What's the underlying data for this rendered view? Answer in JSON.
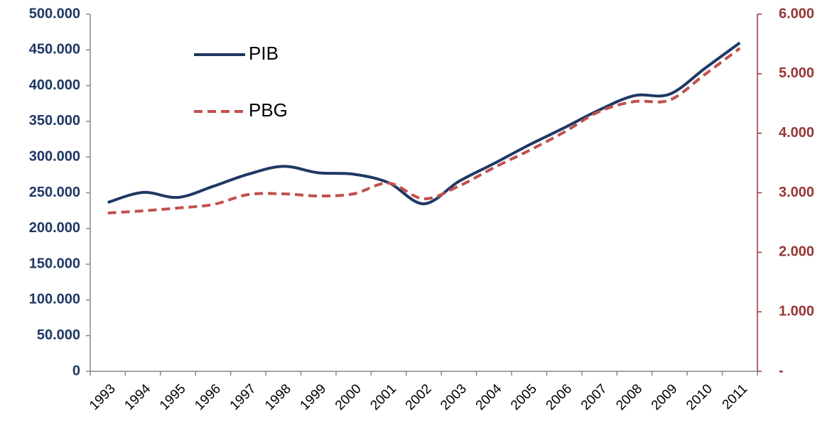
{
  "chart_data": {
    "type": "line",
    "categories": [
      "1993",
      "1994",
      "1995",
      "1996",
      "1997",
      "1998",
      "1999",
      "2000",
      "2001",
      "2002",
      "2003",
      "2004",
      "2005",
      "2006",
      "2007",
      "2008",
      "2009",
      "2010",
      "2011"
    ],
    "series": [
      {
        "name": "PIB",
        "color": "#1f3864",
        "values": [
          236500,
          250500,
          243500,
          259000,
          276000,
          287000,
          278000,
          276000,
          264000,
          234500,
          266000,
          291000,
          317000,
          341000,
          366000,
          386000,
          388000,
          424000,
          460000
        ]
      },
      {
        "name": "PBG",
        "color": "#c0504d",
        "axis": "y2",
        "dashed": true,
        "values": [
          2660,
          2696,
          2744,
          2803,
          2970,
          2982,
          2946,
          2982,
          3161,
          2899,
          3113,
          3423,
          3710,
          4020,
          4366,
          4533,
          4557,
          4986,
          5427
        ]
      }
    ],
    "ylim": [
      0,
      500000
    ],
    "yticks": [
      0,
      {
        "value": 50000,
        "label": "50.000"
      },
      {
        "value": 100000,
        "label": "100.000"
      },
      {
        "value": 150000,
        "label": "150.000"
      },
      {
        "value": 200000,
        "label": "200.000"
      },
      {
        "value": 250000,
        "label": "250.000"
      },
      {
        "value": 300000,
        "label": "300.000"
      },
      {
        "value": 350000,
        "label": "350.000"
      },
      {
        "value": 400000,
        "label": "400.000"
      },
      {
        "value": 450000,
        "label": "450.000"
      },
      {
        "value": 500000,
        "label": "500.000"
      }
    ],
    "y2lim": [
      0,
      6000
    ],
    "y2ticks": [
      {
        "value": 0,
        "label": "-"
      },
      {
        "value": 1000,
        "label": "1.000"
      },
      {
        "value": 2000,
        "label": "2.000"
      },
      {
        "value": 3000,
        "label": "3.000"
      },
      {
        "value": 4000,
        "label": "4.000"
      },
      {
        "value": 5000,
        "label": "5.000"
      },
      {
        "value": 6000,
        "label": "6.000"
      }
    ],
    "legend": "upper left"
  }
}
